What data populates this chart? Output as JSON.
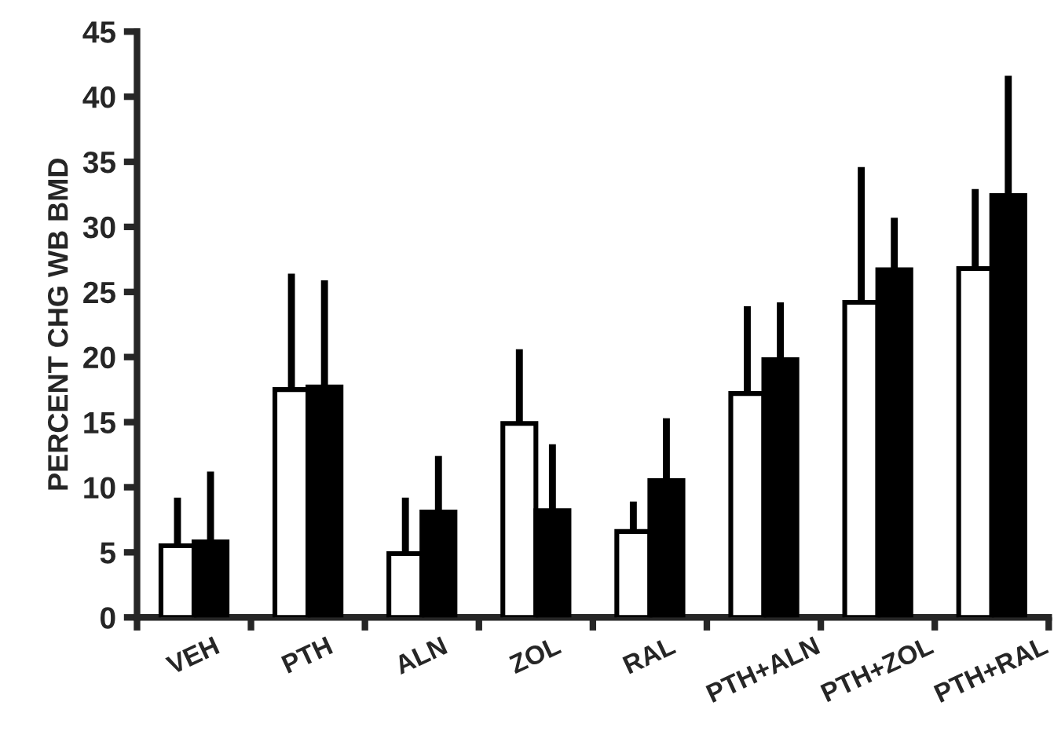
{
  "chart_data": {
    "type": "bar",
    "ylabel": "PERCENT CHG WB BMD",
    "categories": [
      "VEH",
      "PTH",
      "ALN",
      "ZOL",
      "RAL",
      "PTH+ALN",
      "PTH+ZOL",
      "PTH+RAL"
    ],
    "series": [
      {
        "color": "#ffffff",
        "values": [
          5.5,
          17.5,
          4.9,
          14.9,
          6.6,
          17.2,
          24.2,
          26.8
        ],
        "errors": [
          [
            5.5,
            9.2
          ],
          [
            17.5,
            26.4
          ],
          [
            4.9,
            9.2
          ],
          [
            14.9,
            20.6
          ],
          [
            6.6,
            8.9
          ],
          [
            17.2,
            23.9
          ],
          [
            24.2,
            34.6
          ],
          [
            26.8,
            32.9
          ]
        ]
      },
      {
        "color": "#000000",
        "values": [
          5.8,
          17.7,
          8.1,
          8.2,
          10.5,
          19.8,
          26.7,
          32.4
        ],
        "errors": [
          [
            5.8,
            11.2
          ],
          [
            17.7,
            25.9
          ],
          [
            8.1,
            12.4
          ],
          [
            8.2,
            13.3
          ],
          [
            10.5,
            15.3
          ],
          [
            19.8,
            24.2
          ],
          [
            26.7,
            30.7
          ],
          [
            32.4,
            41.6
          ]
        ]
      }
    ],
    "ylim": [
      0,
      45
    ],
    "yticks": [
      0,
      5,
      10,
      15,
      20,
      25,
      30,
      35,
      40,
      45
    ],
    "grid": false,
    "legend": false
  }
}
